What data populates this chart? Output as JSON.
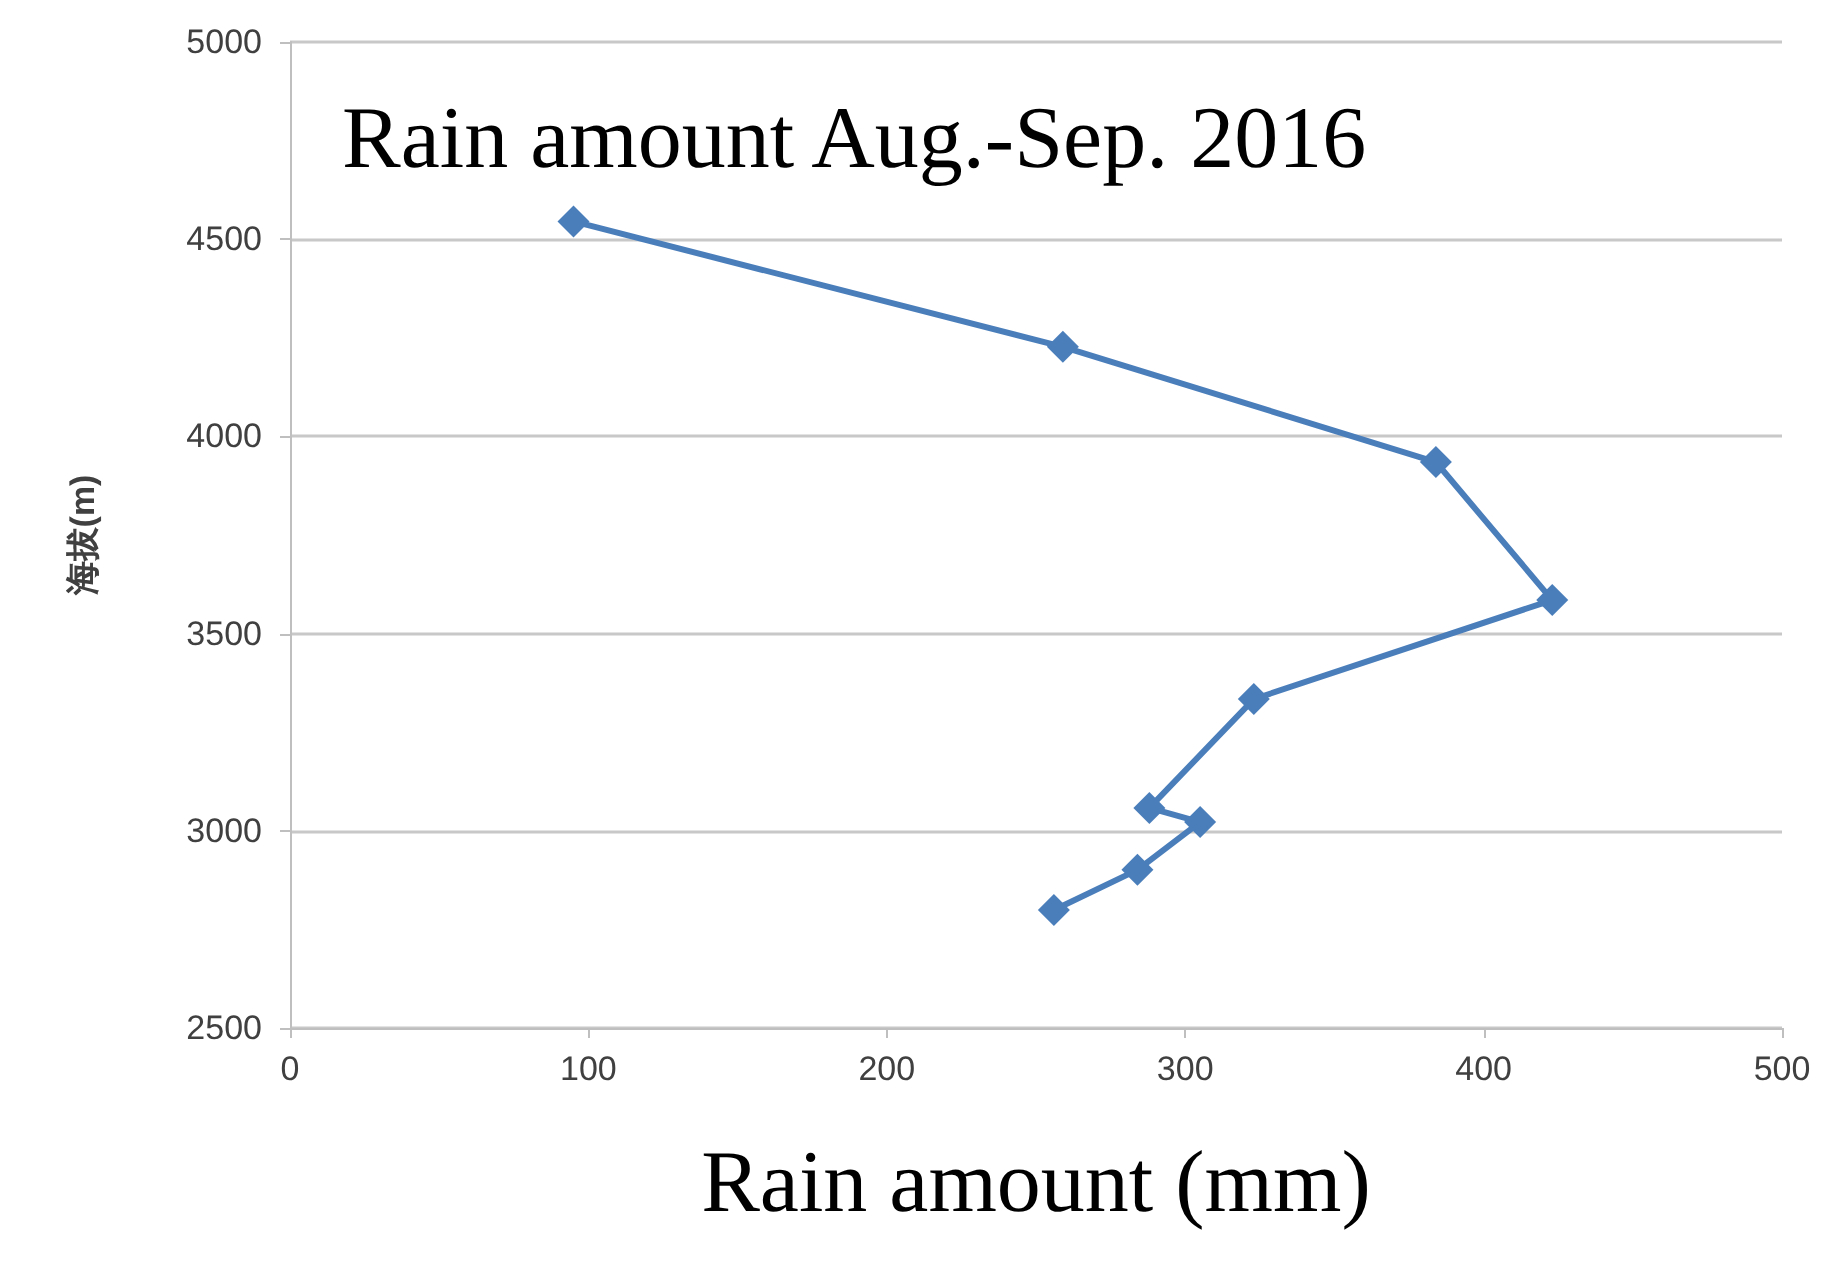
{
  "chart_data": {
    "type": "line",
    "title": "Rain amount Aug.-Sep. 2016",
    "xlabel": "Rain amount (mm)",
    "ylabel": "海拔(m)",
    "x": [
      95,
      259,
      384,
      423,
      323,
      288,
      305,
      284,
      256
    ],
    "series": [
      {
        "color": "#4a7ebb",
        "values": [
          4545,
          4227,
          3935,
          3585,
          3334,
          3058,
          3022,
          2901,
          2799
        ]
      }
    ],
    "xlim": [
      0,
      500
    ],
    "xticks": [
      0,
      100,
      200,
      300,
      400,
      500
    ],
    "ylim": [
      2500,
      5000
    ],
    "yticks": [
      2500,
      3000,
      3500,
      4000,
      4500,
      5000
    ],
    "grid": "y",
    "marker": "diamond",
    "line_style": "solid"
  }
}
